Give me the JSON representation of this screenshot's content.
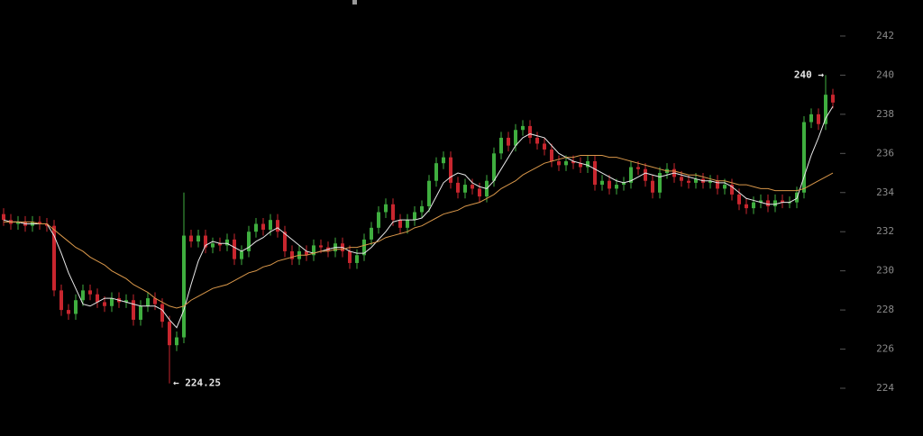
{
  "chart_data": {
    "type": "candlestick",
    "open": [
      232.9,
      232.6,
      232.4,
      232.5,
      232.3,
      232.5,
      232.4,
      232.3,
      229.0,
      228.0,
      227.8,
      228.5,
      229.0,
      228.8,
      228.4,
      228.2,
      228.6,
      228.4,
      228.5,
      227.5,
      228.2,
      228.6,
      228.3,
      227.4,
      226.2,
      226.6,
      231.8,
      231.5,
      231.8,
      231.2,
      231.4,
      231.3,
      231.6,
      230.6,
      231.0,
      232.0,
      232.4,
      232.1,
      232.6,
      232.0,
      231.0,
      230.6,
      231.0,
      230.8,
      231.3,
      231.2,
      231.0,
      231.4,
      231.0,
      230.4,
      230.8,
      231.6,
      232.2,
      233.0,
      233.4,
      232.6,
      232.2,
      232.6,
      233.0,
      233.3,
      234.6,
      235.5,
      235.8,
      234.5,
      234.0,
      234.4,
      234.2,
      233.8,
      234.6,
      236.0,
      236.8,
      236.4,
      237.2,
      237.4,
      236.8,
      236.5,
      236.2,
      235.6,
      235.4,
      235.6,
      235.5,
      235.3,
      235.6,
      234.4,
      234.6,
      234.2,
      234.4,
      234.5,
      235.3,
      235.2,
      234.6,
      234.0,
      235.0,
      235.2,
      234.8,
      234.6,
      234.5,
      234.7,
      234.5,
      234.6,
      234.2,
      234.4,
      233.9,
      233.4,
      233.2,
      233.5,
      233.6,
      233.3,
      233.6,
      233.5,
      233.5,
      234.0,
      237.6,
      238.0,
      237.5,
      239.0
    ],
    "high": [
      233.2,
      232.9,
      232.8,
      232.8,
      232.8,
      232.8,
      232.7,
      232.6,
      229.3,
      228.3,
      228.8,
      229.3,
      229.3,
      229.1,
      228.7,
      228.9,
      228.9,
      228.8,
      228.8,
      228.5,
      228.9,
      228.9,
      228.6,
      227.7,
      226.9,
      234.0,
      232.1,
      232.1,
      232.1,
      231.7,
      231.7,
      231.9,
      231.9,
      231.3,
      232.3,
      232.7,
      232.7,
      232.9,
      232.9,
      232.3,
      231.3,
      231.3,
      231.3,
      231.6,
      231.6,
      231.5,
      231.7,
      231.7,
      231.3,
      231.1,
      231.9,
      232.5,
      233.3,
      233.7,
      233.7,
      232.9,
      232.9,
      233.3,
      233.6,
      234.9,
      235.8,
      236.1,
      236.1,
      234.8,
      234.7,
      234.7,
      234.5,
      234.9,
      236.3,
      237.1,
      237.1,
      237.5,
      237.7,
      237.7,
      237.1,
      236.8,
      236.5,
      235.9,
      235.9,
      235.9,
      235.8,
      235.9,
      235.9,
      234.9,
      234.9,
      234.7,
      234.8,
      235.6,
      235.6,
      235.5,
      234.9,
      235.3,
      235.5,
      235.5,
      235.1,
      234.9,
      235.0,
      235.0,
      234.9,
      234.9,
      234.7,
      234.7,
      234.2,
      233.7,
      233.8,
      233.9,
      233.9,
      233.9,
      233.9,
      233.8,
      234.3,
      237.9,
      238.3,
      238.3,
      240.0,
      239.3
    ],
    "low": [
      232.3,
      232.1,
      232.1,
      232.0,
      232.0,
      232.1,
      232.0,
      228.7,
      227.7,
      227.5,
      227.5,
      228.2,
      228.5,
      228.1,
      227.9,
      227.9,
      228.1,
      228.1,
      227.2,
      227.2,
      227.9,
      228.0,
      227.1,
      224.25,
      225.9,
      226.3,
      231.2,
      231.2,
      230.9,
      230.9,
      231.0,
      231.0,
      230.3,
      230.3,
      230.7,
      231.7,
      231.8,
      231.8,
      231.7,
      230.7,
      230.3,
      230.3,
      230.5,
      230.5,
      230.9,
      230.7,
      230.7,
      230.7,
      230.1,
      230.1,
      230.5,
      231.3,
      231.9,
      232.7,
      232.3,
      231.9,
      231.9,
      232.3,
      232.7,
      233.0,
      234.3,
      235.2,
      234.2,
      233.7,
      233.7,
      233.9,
      233.5,
      233.5,
      234.3,
      235.7,
      236.1,
      236.1,
      236.9,
      236.5,
      236.2,
      235.9,
      235.3,
      235.1,
      235.1,
      235.2,
      235.0,
      235.0,
      234.1,
      234.1,
      233.9,
      233.9,
      234.1,
      234.2,
      234.9,
      234.3,
      233.7,
      233.7,
      234.7,
      234.5,
      234.3,
      234.2,
      234.2,
      234.2,
      234.2,
      233.9,
      233.9,
      233.6,
      233.1,
      232.9,
      232.9,
      233.2,
      233.0,
      233.0,
      233.2,
      233.2,
      233.2,
      233.7,
      237.3,
      237.2,
      237.2,
      238.3
    ],
    "close": [
      232.6,
      232.4,
      232.5,
      232.3,
      232.5,
      232.4,
      232.3,
      229.0,
      228.0,
      227.8,
      228.5,
      229.0,
      228.8,
      228.4,
      228.2,
      228.6,
      228.4,
      228.5,
      227.5,
      228.2,
      228.6,
      228.3,
      227.4,
      226.2,
      226.6,
      231.8,
      231.5,
      231.8,
      231.2,
      231.4,
      231.3,
      231.6,
      230.6,
      231.0,
      232.0,
      232.4,
      232.1,
      232.6,
      232.0,
      231.0,
      230.6,
      231.0,
      230.8,
      231.3,
      231.2,
      231.0,
      231.4,
      231.0,
      230.4,
      230.8,
      231.6,
      232.2,
      233.0,
      233.4,
      232.6,
      232.2,
      232.6,
      233.0,
      233.3,
      234.6,
      235.5,
      235.8,
      234.5,
      234.0,
      234.4,
      234.2,
      233.8,
      234.6,
      236.0,
      236.8,
      236.4,
      237.2,
      237.4,
      236.8,
      236.5,
      236.2,
      235.6,
      235.4,
      235.6,
      235.5,
      235.3,
      235.6,
      234.4,
      234.6,
      234.2,
      234.4,
      234.5,
      235.3,
      235.2,
      234.6,
      234.0,
      235.0,
      235.2,
      234.8,
      234.6,
      234.5,
      234.7,
      234.5,
      234.6,
      234.2,
      234.4,
      233.9,
      233.4,
      233.2,
      233.5,
      233.6,
      233.3,
      233.6,
      233.5,
      233.5,
      234.0,
      237.6,
      238.0,
      237.5,
      239.0,
      238.6
    ],
    "up_color": "#3fae3f",
    "down_color": "#c8262e",
    "moving_averages": [
      {
        "color": "#e8e8e8",
        "values": [
          232.6,
          232.5,
          232.5,
          232.4,
          232.4,
          232.4,
          232.4,
          231.8,
          230.9,
          229.9,
          229.1,
          228.3,
          228.2,
          228.4,
          228.6,
          228.6,
          228.5,
          228.4,
          228.3,
          228.2,
          228.2,
          228.2,
          228.0,
          227.5,
          227.1,
          228.0,
          229.3,
          230.5,
          231.3,
          231.5,
          231.4,
          231.4,
          231.2,
          231.0,
          231.2,
          231.5,
          231.7,
          232.0,
          232.2,
          231.9,
          231.6,
          231.3,
          231.0,
          230.9,
          231.0,
          231.1,
          231.2,
          231.2,
          231.0,
          230.9,
          230.9,
          231.2,
          231.6,
          232.0,
          232.5,
          232.6,
          232.6,
          232.6,
          232.7,
          233.1,
          233.8,
          234.5,
          234.8,
          235.0,
          234.9,
          234.5,
          234.3,
          234.2,
          234.6,
          235.2,
          235.8,
          236.4,
          236.8,
          237.0,
          236.9,
          236.8,
          236.4,
          236.0,
          235.8,
          235.6,
          235.5,
          235.4,
          235.2,
          235.0,
          234.8,
          234.6,
          234.5,
          234.6,
          234.8,
          235.0,
          234.9,
          234.8,
          234.9,
          235.0,
          234.9,
          234.8,
          234.7,
          234.6,
          234.6,
          234.5,
          234.5,
          234.3,
          234.0,
          233.7,
          233.6,
          233.5,
          233.4,
          233.4,
          233.5,
          233.5,
          233.7,
          234.8,
          235.9,
          236.8,
          237.8,
          238.4
        ]
      },
      {
        "color": "#d9974a",
        "values": [
          232.5,
          232.5,
          232.5,
          232.5,
          232.5,
          232.4,
          232.4,
          232.1,
          231.8,
          231.5,
          231.2,
          231.0,
          230.7,
          230.5,
          230.3,
          230.0,
          229.8,
          229.6,
          229.3,
          229.1,
          228.9,
          228.6,
          228.4,
          228.2,
          228.1,
          228.2,
          228.5,
          228.7,
          228.9,
          229.1,
          229.2,
          229.3,
          229.5,
          229.7,
          229.9,
          230.0,
          230.2,
          230.3,
          230.5,
          230.6,
          230.7,
          230.8,
          230.8,
          230.9,
          231.0,
          231.0,
          231.1,
          231.1,
          231.2,
          231.2,
          231.3,
          231.4,
          231.5,
          231.7,
          231.8,
          231.9,
          232.0,
          232.2,
          232.3,
          232.5,
          232.7,
          232.9,
          233.0,
          233.1,
          233.3,
          233.4,
          233.5,
          233.7,
          233.9,
          234.2,
          234.4,
          234.6,
          234.9,
          235.1,
          235.3,
          235.5,
          235.6,
          235.7,
          235.8,
          235.8,
          235.9,
          235.9,
          235.9,
          235.9,
          235.8,
          235.8,
          235.7,
          235.6,
          235.5,
          235.4,
          235.3,
          235.2,
          235.1,
          235.1,
          235.0,
          234.9,
          234.9,
          234.8,
          234.7,
          234.6,
          234.6,
          234.5,
          234.4,
          234.4,
          234.3,
          234.2,
          234.2,
          234.1,
          234.1,
          234.1,
          234.1,
          234.2,
          234.4,
          234.6,
          234.8,
          235.0
        ]
      }
    ],
    "ylim": [
      221.56,
      243.84
    ],
    "yticks": [
      224,
      226,
      228,
      230,
      232,
      234,
      236,
      238,
      240,
      242
    ],
    "annotations": [
      {
        "text": "240 →"
      },
      {
        "text": "← 224.25"
      }
    ]
  }
}
